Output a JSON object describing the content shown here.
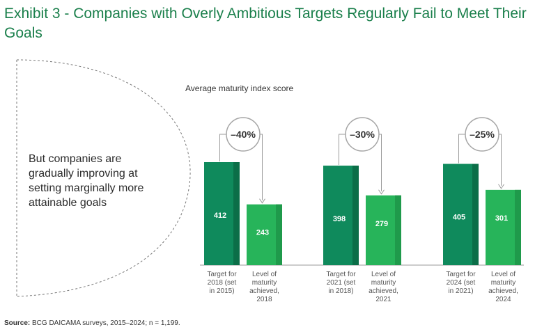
{
  "title": "Exhibit 3 - Companies with Overly Ambitious Targets Regularly Fail to Meet Their Goals",
  "callout": "But companies are gradually improving at setting marginally more attainable goals",
  "source_label": "Source:",
  "source_text": "BCG DAICAMA surveys, 2015–2024; n = 1,199.",
  "colors": {
    "target": "#0f8a5c",
    "target_shade": "#0b6e48",
    "achieved": "#27b45a",
    "achieved_shade": "#1f9a4b",
    "title": "#1a7f4b"
  },
  "chart_data": {
    "type": "bar",
    "ylabel": "Average maturity index score",
    "groups": [
      {
        "target_label": [
          "Target for",
          "2018 (set",
          "in 2015)"
        ],
        "achieved_label": [
          "Level of",
          "maturity",
          "achieved,",
          "2018"
        ],
        "target_value": 412,
        "achieved_value": 243,
        "change": "–40%"
      },
      {
        "target_label": [
          "Target for",
          "2021 (set",
          "in 2018)"
        ],
        "achieved_label": [
          "Level of",
          "maturity",
          "achieved,",
          "2021"
        ],
        "target_value": 398,
        "achieved_value": 279,
        "change": "–30%"
      },
      {
        "target_label": [
          "Target for",
          "2024 (set",
          "in 2021)"
        ],
        "achieved_label": [
          "Level of",
          "maturity",
          "achieved,",
          "2024"
        ],
        "target_value": 405,
        "achieved_value": 301,
        "change": "–25%"
      }
    ],
    "ylim": [
      0,
      412
    ]
  }
}
